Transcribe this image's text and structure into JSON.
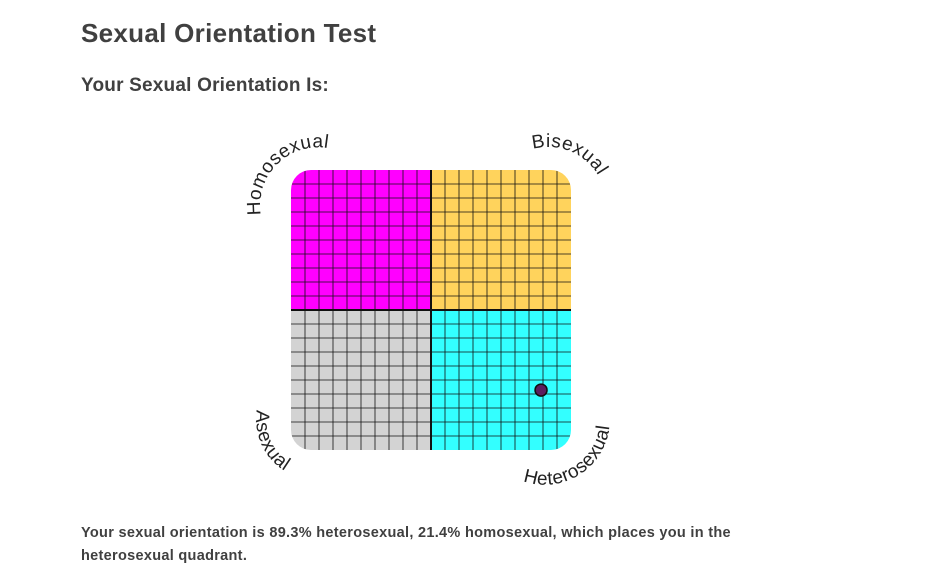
{
  "header": {
    "title": "Sexual Orientation Test"
  },
  "result": {
    "heading": "Your Sexual Orientation Is:",
    "labels": {
      "top_left": "Homosexual",
      "top_right": "Bisexual",
      "bottom_left": "Asexual",
      "bottom_right": "Heterosexual"
    },
    "colors": {
      "top_left": "#ff00ff",
      "top_right": "#ffd35c",
      "bottom_left": "#d3d3d3",
      "bottom_right": "#33ffff",
      "point": "#5b1e5e"
    },
    "point": {
      "heterosexual": 89.3,
      "homosexual": 21.4,
      "xlim": [
        0,
        100
      ],
      "ylim": [
        0,
        100
      ]
    },
    "summary": {
      "prefix": "Your sexual orientation is ",
      "middle": "% heterosexual, ",
      "suffix": "% homosexual, which places you in the heterosexual quadrant."
    }
  }
}
